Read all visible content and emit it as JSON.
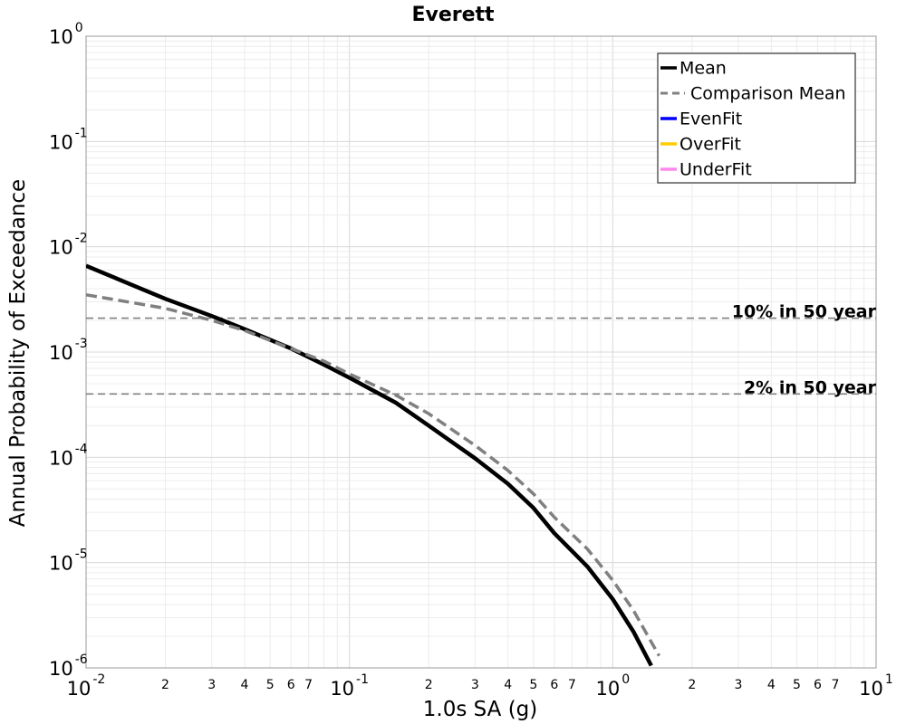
{
  "chart_data": {
    "type": "line",
    "title": "Everett",
    "xlabel": "1.0s SA (g)",
    "ylabel": "Annual Probability of Exceedance",
    "x_scale": "log",
    "y_scale": "log",
    "xlim": [
      0.01,
      10
    ],
    "ylim": [
      1e-06,
      1
    ],
    "grid": true,
    "legend_position": "top-right",
    "x_major_ticks": [
      {
        "base": "10",
        "exp": "-2"
      },
      {
        "base": "10",
        "exp": "-1"
      },
      {
        "base": "10",
        "exp": "0"
      },
      {
        "base": "10",
        "exp": "1"
      }
    ],
    "x_minor_tick_labels": [
      "2",
      "3",
      "4",
      "5",
      "6",
      "7"
    ],
    "y_major_ticks": [
      {
        "base": "10",
        "exp": "0"
      },
      {
        "base": "10",
        "exp": "-1"
      },
      {
        "base": "10",
        "exp": "-2"
      },
      {
        "base": "10",
        "exp": "-3"
      },
      {
        "base": "10",
        "exp": "-4"
      },
      {
        "base": "10",
        "exp": "-5"
      },
      {
        "base": "10",
        "exp": "-6"
      }
    ],
    "series": [
      {
        "name": "Mean",
        "color": "#000000",
        "style": "solid",
        "x": [
          0.01,
          0.02,
          0.03,
          0.04,
          0.06,
          0.08,
          0.1,
          0.15,
          0.2,
          0.3,
          0.4,
          0.5,
          0.6,
          0.8,
          1.0,
          1.2,
          1.4
        ],
        "y": [
          0.0066,
          0.0032,
          0.0022,
          0.00165,
          0.00108,
          0.00076,
          0.00057,
          0.00033,
          0.0002,
          9.8e-05,
          5.6e-05,
          3.3e-05,
          1.9e-05,
          9.2e-06,
          4.5e-06,
          2.2e-06,
          1.05e-06
        ]
      },
      {
        "name": "Comparison Mean",
        "color": "#808080",
        "style": "dashed",
        "x": [
          0.01,
          0.02,
          0.03,
          0.04,
          0.06,
          0.08,
          0.1,
          0.15,
          0.2,
          0.3,
          0.4,
          0.5,
          0.6,
          0.8,
          1.0,
          1.2,
          1.5
        ],
        "y": [
          0.0035,
          0.0026,
          0.002,
          0.0016,
          0.00108,
          0.00082,
          0.00062,
          0.00039,
          0.00026,
          0.00013,
          7.5e-05,
          4.5e-05,
          2.7e-05,
          1.35e-05,
          6.8e-06,
          3.5e-06,
          1.3e-06
        ]
      },
      {
        "name": "EvenFit",
        "color": "#0000ff",
        "style": "solid",
        "x": [],
        "y": []
      },
      {
        "name": "OverFit",
        "color": "#ffcc00",
        "style": "solid",
        "x": [],
        "y": []
      },
      {
        "name": "UnderFit",
        "color": "#ff88ee",
        "style": "solid",
        "x": [],
        "y": []
      }
    ],
    "reference_lines": [
      {
        "label": "10% in 50 year",
        "y": 0.0021,
        "color": "#808080"
      },
      {
        "label": "2% in 50 year",
        "y": 0.0004,
        "color": "#808080"
      }
    ]
  }
}
